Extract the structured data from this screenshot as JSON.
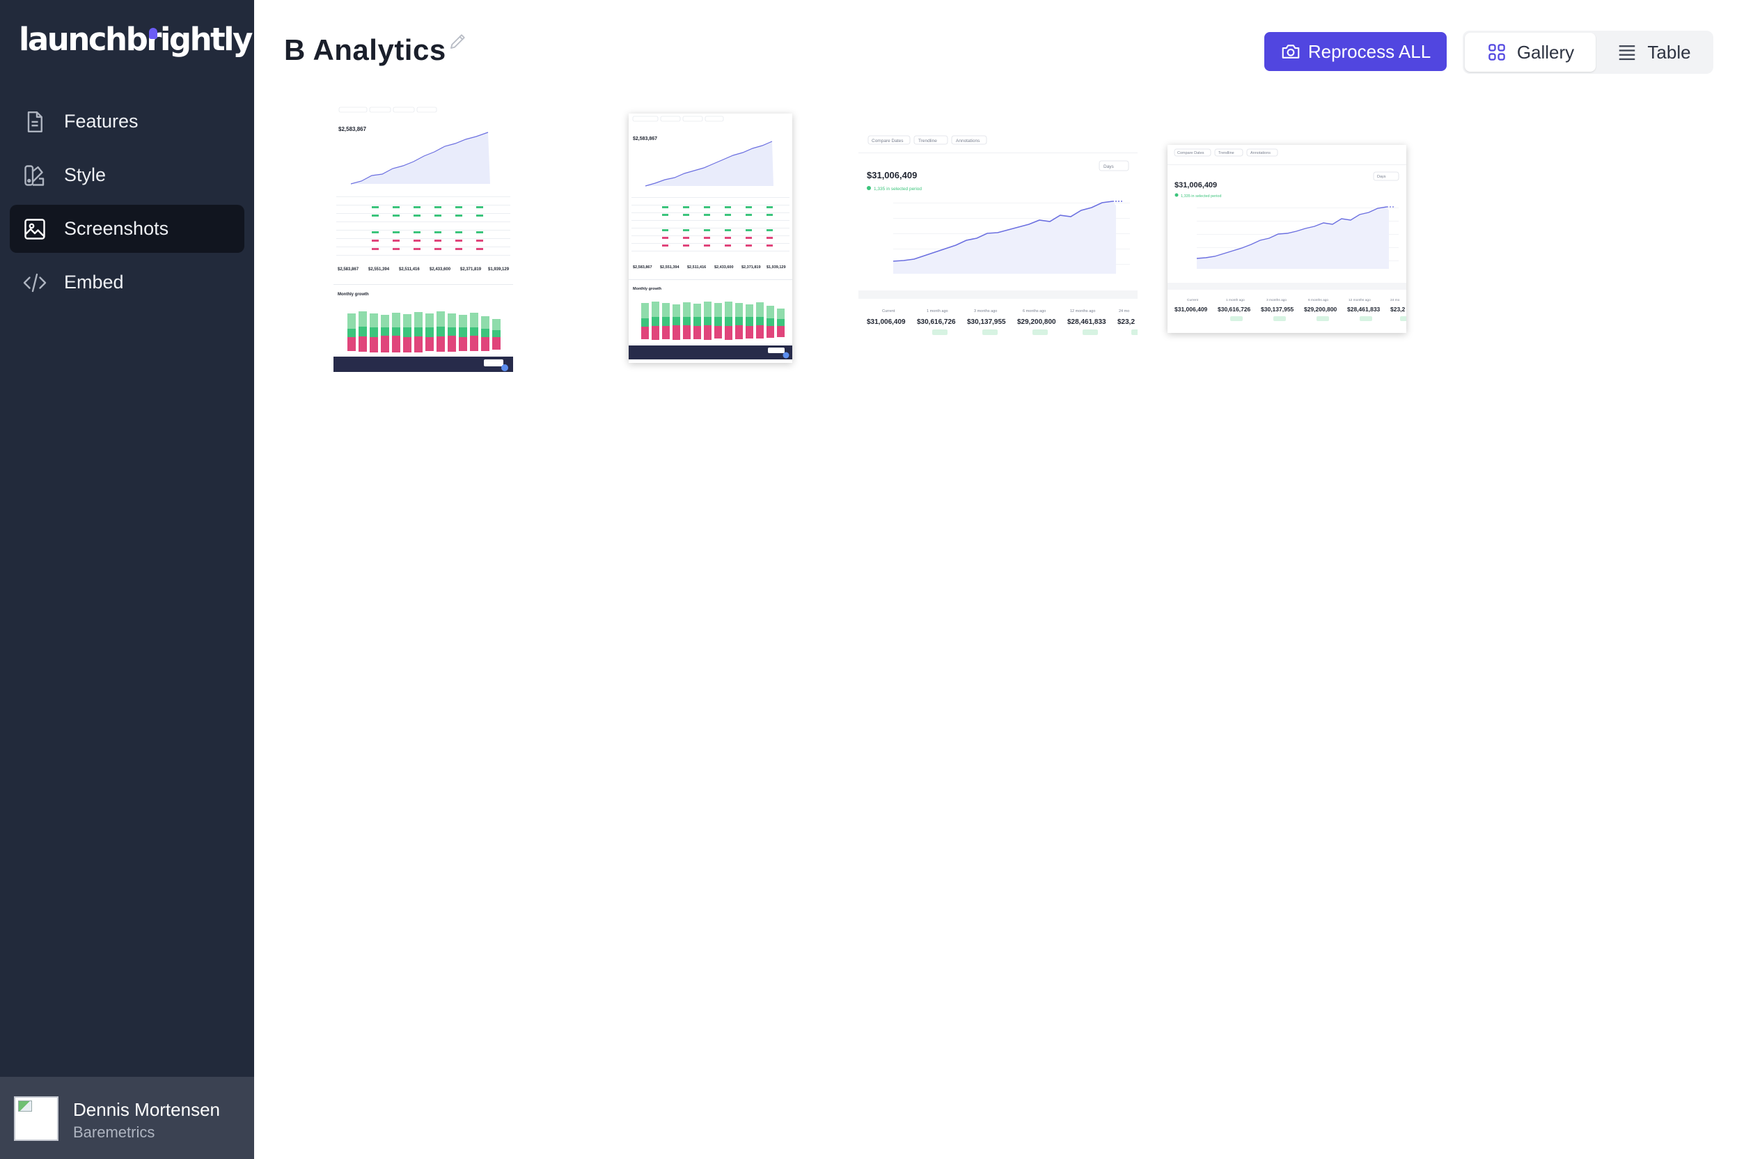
{
  "brand": {
    "logo_text": "launchbrightly"
  },
  "sidebar": {
    "items": [
      {
        "label": "Features",
        "icon": "document-icon",
        "active": false
      },
      {
        "label": "Style",
        "icon": "swatch-icon",
        "active": false
      },
      {
        "label": "Screenshots",
        "icon": "image-icon",
        "active": true
      },
      {
        "label": "Embed",
        "icon": "code-icon",
        "active": false
      }
    ]
  },
  "user": {
    "name": "Dennis Mortensen",
    "company": "Baremetrics"
  },
  "header": {
    "title": "B Analytics",
    "reprocess_label": "Reprocess ALL",
    "view_toggle": {
      "gallery_label": "Gallery",
      "table_label": "Table",
      "selected": "Gallery"
    }
  },
  "colors": {
    "sidebar_bg": "#222a3b",
    "accent": "#5146e0",
    "chart_line": "#6b6fe0",
    "positive": "#3cc47c",
    "negative": "#e0457b"
  },
  "gallery": {
    "thumbnails": [
      {
        "headline_value": "$2,583,867",
        "summary": [
          "$2,583,867",
          "$2,551,394",
          "$2,511,416",
          "$2,433,600",
          "$2,371,819",
          "$1,939,129"
        ],
        "section_title": "Monthly growth"
      },
      {
        "headline_value": "$2,583,867",
        "summary": [
          "$2,583,867",
          "$2,551,394",
          "$2,511,416",
          "$2,433,600",
          "$2,371,819",
          "$1,939,129"
        ],
        "section_title": "Monthly growth"
      },
      {
        "headline_value": "$31,006,409",
        "headline_note": "1,335 in selected period",
        "range_label": "Days",
        "filters": [
          "Compare Dates",
          "Trendline",
          "Annotations"
        ],
        "comparison_labels": [
          "Current",
          "1 month ago",
          "3 months ago",
          "6 months ago",
          "12 months ago",
          "24 mo"
        ],
        "comparison_values": [
          "$31,006,409",
          "$30,616,726",
          "$30,137,955",
          "$29,200,800",
          "$28,461,833",
          "$23,2"
        ]
      },
      {
        "headline_value": "$31,006,409",
        "headline_note": "1,335 in selected period",
        "range_label": "Days",
        "filters": [
          "Compare Dates",
          "Trendline",
          "Annotations"
        ],
        "comparison_labels": [
          "Current",
          "1 month ago",
          "3 months ago",
          "6 months ago",
          "12 months ago",
          "24 mo"
        ],
        "comparison_values": [
          "$31,006,409",
          "$30,616,726",
          "$30,137,955",
          "$29,200,800",
          "$28,461,833",
          "$23,2"
        ]
      }
    ]
  }
}
